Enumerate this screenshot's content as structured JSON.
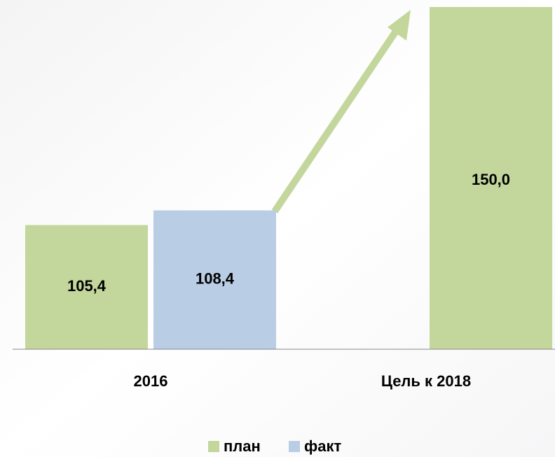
{
  "chart_data": {
    "type": "bar",
    "categories": [
      "2016",
      "Цель к 2018"
    ],
    "series": [
      {
        "name": "план",
        "color": "#c3d69b",
        "values": [
          105.4,
          150.0
        ],
        "value_labels": [
          "105,4",
          "150,0"
        ]
      },
      {
        "name": "факт",
        "color": "#b9cde5",
        "values": [
          108.4,
          null
        ],
        "value_labels": [
          "108,4",
          null
        ]
      }
    ],
    "ylim": [
      80,
      150
    ],
    "legend": "bottom"
  }
}
